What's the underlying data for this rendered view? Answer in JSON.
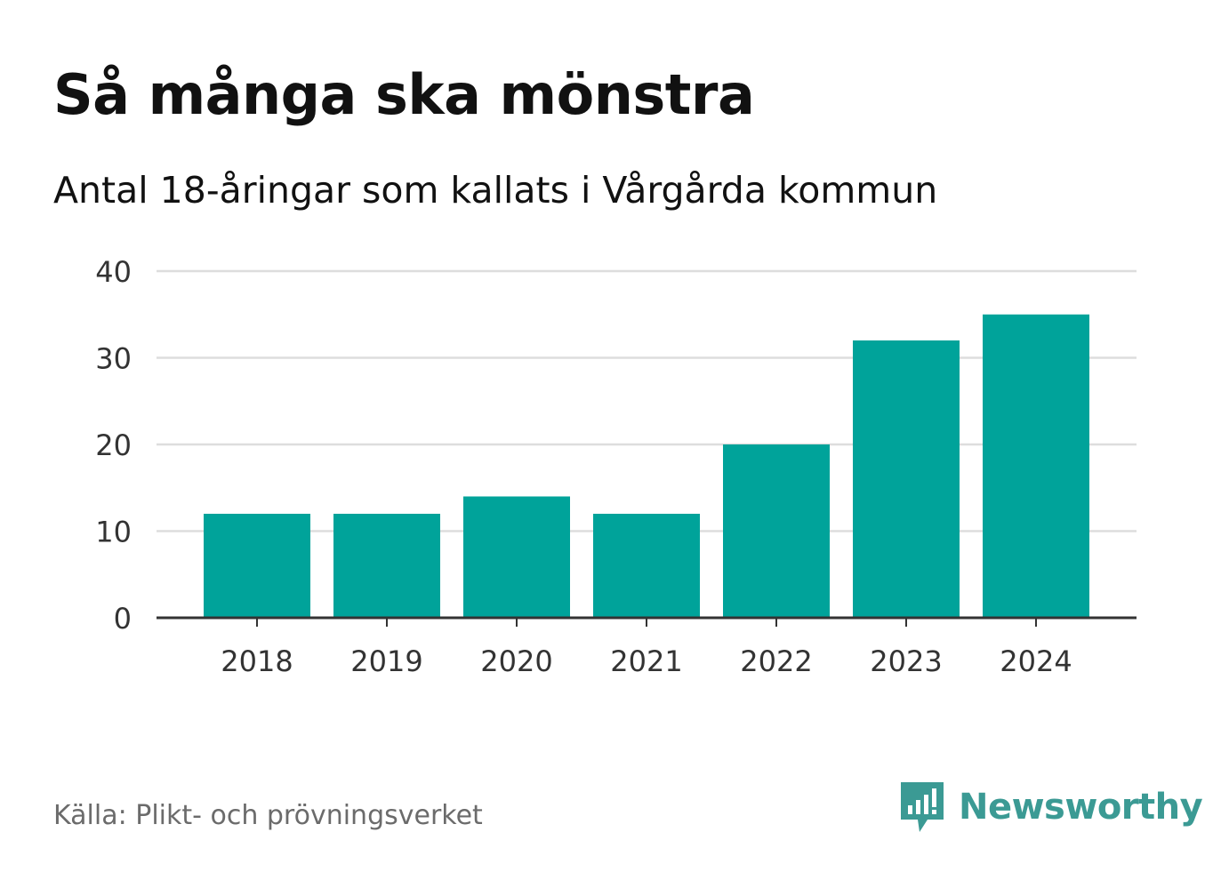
{
  "header": {
    "title": "Så många ska mönstra",
    "subtitle": "Antal 18-åringar som kallats i Vårgårda kommun"
  },
  "footer": {
    "source": "Källa: Plikt- och prövningsverket",
    "brand": "Newsworthy",
    "brand_icon": "newsworthy-logo-icon"
  },
  "colors": {
    "bar": "#00a39a",
    "grid": "#dddddd",
    "axis": "#333333",
    "brand": "#3b9a94"
  },
  "chart_data": {
    "type": "bar",
    "title": "Så många ska mönstra",
    "subtitle": "Antal 18-åringar som kallats i Vårgårda kommun",
    "categories": [
      "2018",
      "2019",
      "2020",
      "2021",
      "2022",
      "2023",
      "2024"
    ],
    "values": [
      12,
      12,
      14,
      12,
      20,
      32,
      35
    ],
    "xlabel": "",
    "ylabel": "",
    "ylim": [
      0,
      40
    ],
    "yticks": [
      0,
      10,
      20,
      30,
      40
    ],
    "grid": true,
    "legend": "none"
  }
}
